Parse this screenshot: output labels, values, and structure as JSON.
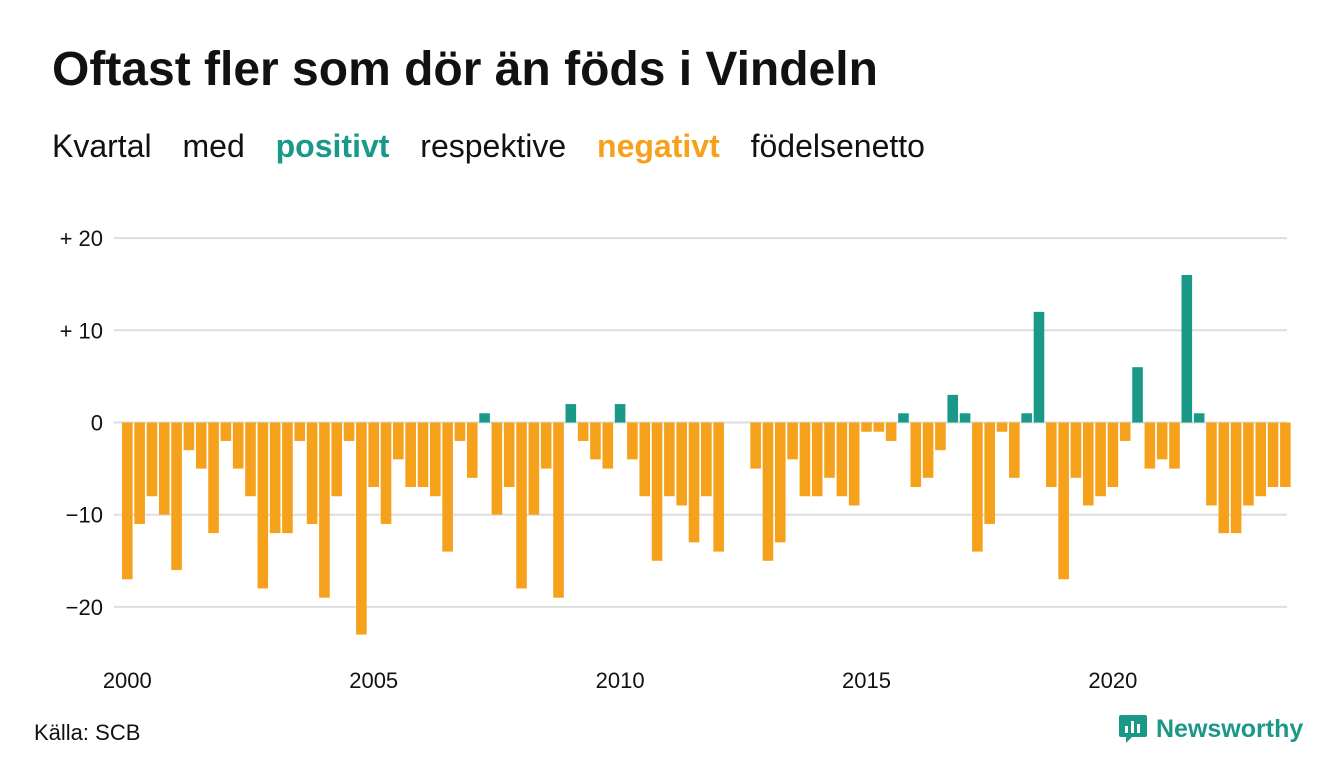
{
  "title": "Oftast fler som dör än föds i Vindeln",
  "subtitle": {
    "part1": "Kvartal",
    "part2": "med",
    "positive": "positivt",
    "part3": "respektive",
    "negative": "negativt",
    "part4": "födelsenetto"
  },
  "source": "Källa: SCB",
  "brand": "Newsworthy",
  "colors": {
    "positive": "#1a9988",
    "negative": "#f5a11c",
    "grid": "#dddddd",
    "text": "#111111"
  },
  "chart_data": {
    "type": "bar",
    "x_unit": "quarter",
    "x_start": "2000 Q1",
    "x_tick_labels": [
      "2000",
      "2005",
      "2010",
      "2015",
      "2020"
    ],
    "y_ticks": [
      20,
      10,
      0,
      -10,
      -20
    ],
    "y_tick_labels": [
      "+ 20",
      "+ 10",
      "0",
      "−10",
      "−20"
    ],
    "ylim": [
      -25,
      22
    ],
    "grid": true,
    "values": [
      -17,
      -11,
      -8,
      -10,
      -16,
      -3,
      -5,
      -12,
      -2,
      -5,
      -8,
      -18,
      -12,
      -12,
      -2,
      -11,
      -19,
      -8,
      -2,
      -23,
      -7,
      -11,
      -4,
      -7,
      -7,
      -8,
      -14,
      -2,
      -6,
      1,
      -10,
      -7,
      -18,
      -10,
      -5,
      -19,
      2,
      -2,
      -4,
      -5,
      2,
      -4,
      -8,
      -15,
      -8,
      -9,
      -13,
      -8,
      -14,
      0,
      0,
      -5,
      -15,
      -13,
      -4,
      -8,
      -8,
      -6,
      -8,
      -9,
      -1,
      -1,
      -2,
      1,
      -7,
      -6,
      -3,
      3,
      1,
      -14,
      -11,
      -1,
      -6,
      1,
      12,
      -7,
      -17,
      -6,
      -9,
      -8,
      -7,
      -2,
      6,
      -5,
      -4,
      -5,
      16,
      1,
      -9,
      -12,
      -12,
      -9,
      -8,
      -7,
      -7
    ]
  }
}
